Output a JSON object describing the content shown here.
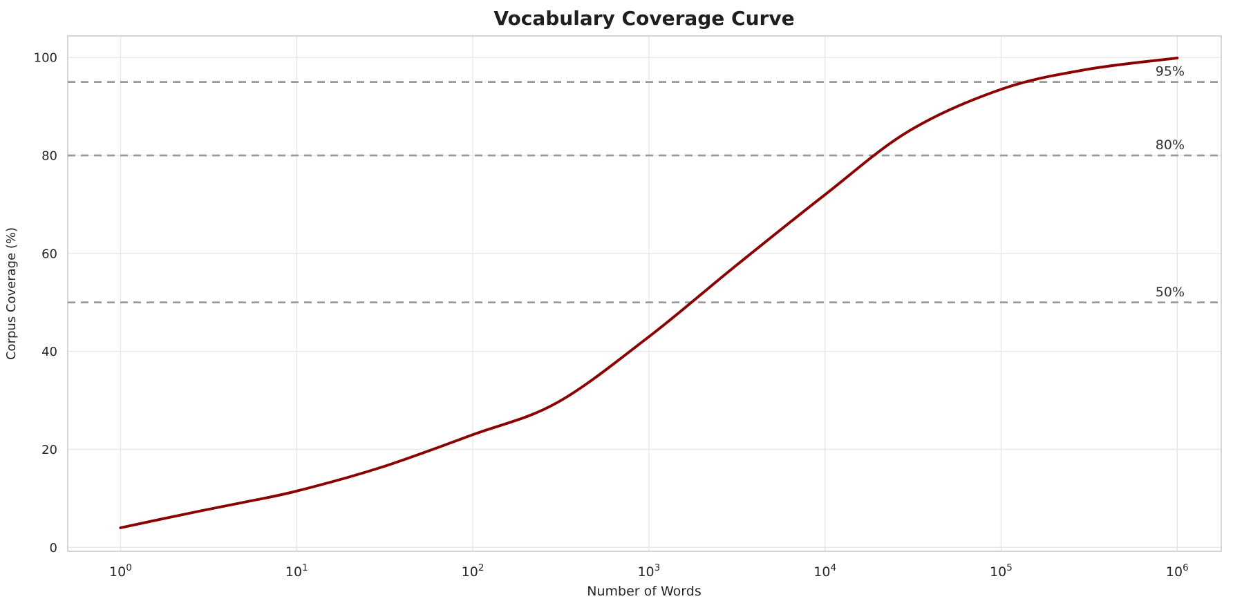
{
  "chart_data": {
    "type": "line",
    "title": "Vocabulary Coverage Curve",
    "xlabel": "Number of Words",
    "ylabel": "Corpus Coverage (%)",
    "x_scale": "log10",
    "x_tick_exponents": [
      0,
      1,
      2,
      3,
      4,
      5,
      6
    ],
    "x_tick_base": "10",
    "y_ticks": [
      0,
      20,
      40,
      60,
      80,
      100
    ],
    "xlim_log10": [
      -0.3,
      6.25
    ],
    "ylim": [
      -0.8,
      104.4
    ],
    "grid": true,
    "legend": "none",
    "series": [
      {
        "name": "vocabulary-coverage",
        "color": "#8b0000",
        "line_width": 3.9,
        "points": [
          [
            1,
            4.0
          ],
          [
            2,
            6.3
          ],
          [
            3,
            7.6
          ],
          [
            5,
            9.2
          ],
          [
            10,
            11.5
          ],
          [
            30,
            16.3
          ],
          [
            100,
            23.0
          ],
          [
            300,
            29.5
          ],
          [
            1000,
            43.0
          ],
          [
            3000,
            57.0
          ],
          [
            10000,
            72.0
          ],
          [
            30000,
            85.0
          ],
          [
            100000,
            93.5
          ],
          [
            300000,
            97.5
          ],
          [
            1000000,
            99.9
          ]
        ]
      }
    ],
    "reference_lines": [
      {
        "value": 50,
        "label": "50%"
      },
      {
        "value": 80,
        "label": "80%"
      },
      {
        "value": 95,
        "label": "95%"
      }
    ],
    "reference_style": {
      "color": "#999999",
      "dash": "11 8",
      "width": 2.8
    },
    "colors": {
      "grid": "#e7e7e7",
      "frame": "#cccccc",
      "tick_text": "#262626",
      "annotation_text": "#333333",
      "background": "#ffffff"
    }
  }
}
